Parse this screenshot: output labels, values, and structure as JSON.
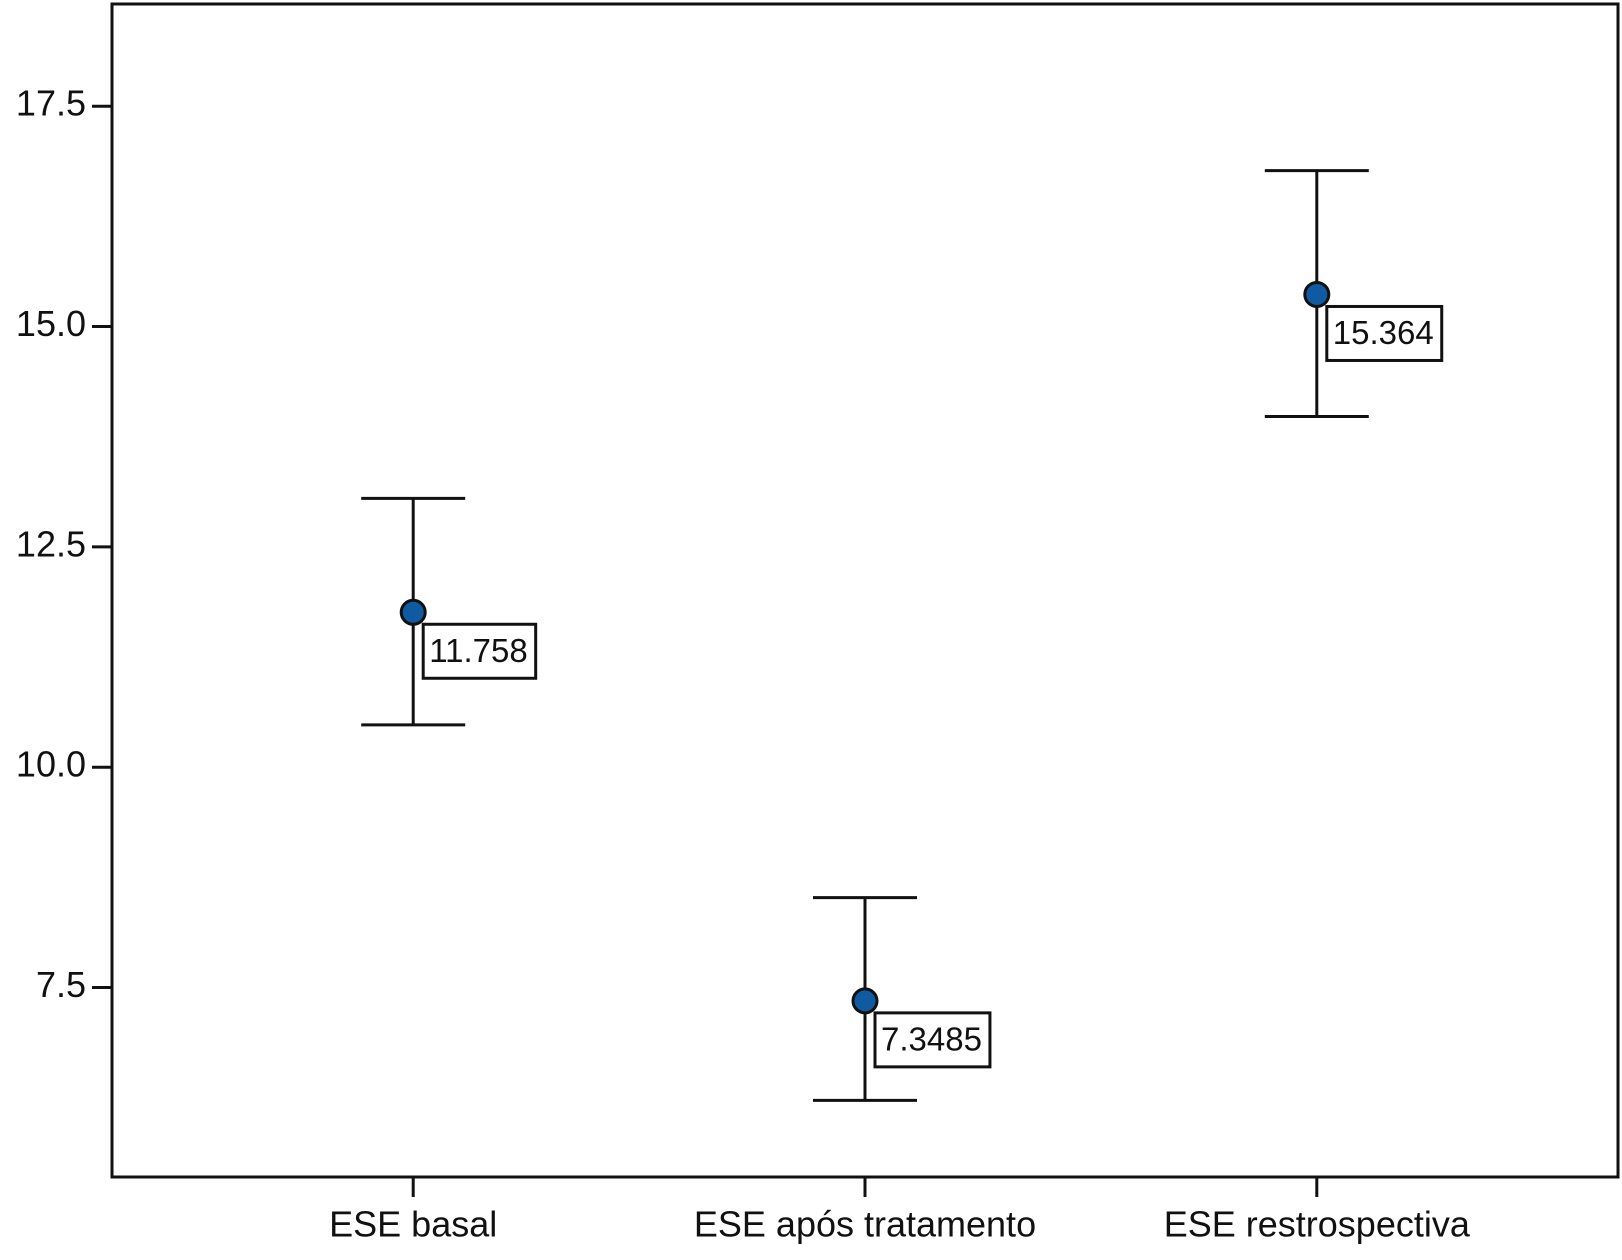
{
  "chart_data": {
    "type": "errorbar",
    "categories": [
      "ESE basal",
      "ESE após tratamento",
      "ESE restrospectiva"
    ],
    "values": [
      11.758,
      7.3485,
      15.364
    ],
    "lower": [
      10.48,
      6.22,
      13.98
    ],
    "upper": [
      13.05,
      8.52,
      16.77
    ],
    "color": "#0f5aa0",
    "ylim": [
      5.35,
      18.66
    ],
    "yticks": [
      7.5,
      10.0,
      12.5,
      15.0,
      17.5
    ],
    "grid": false
  }
}
